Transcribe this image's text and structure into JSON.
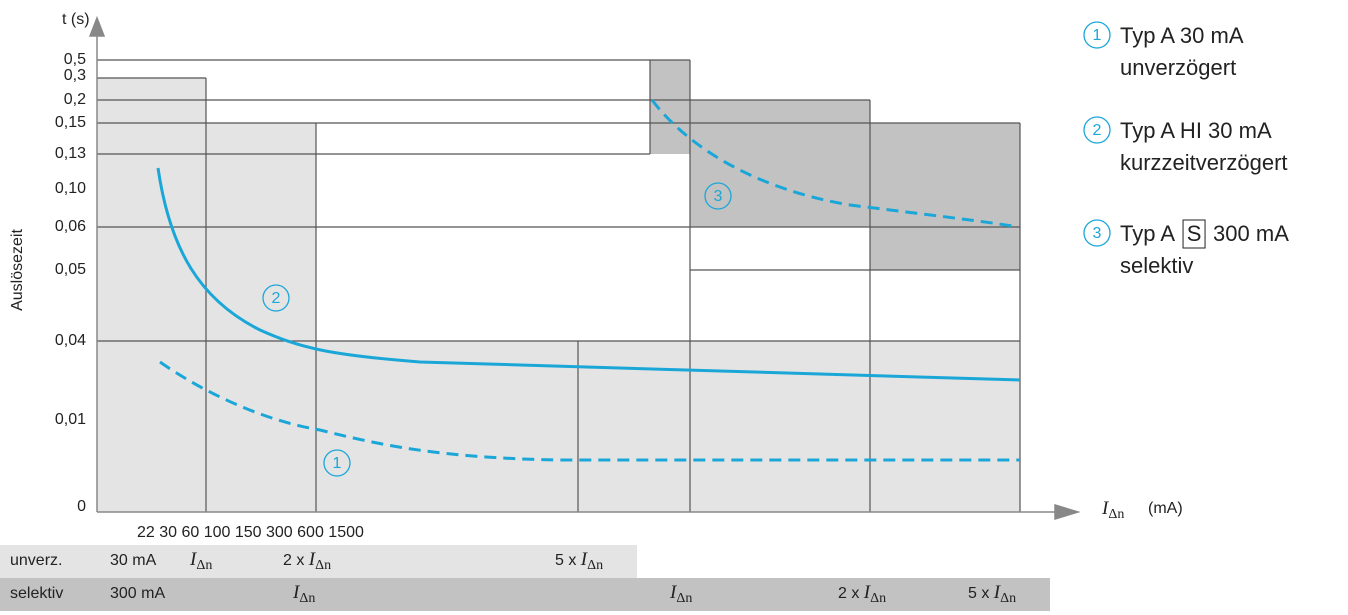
{
  "y_axis": {
    "unit": "t (s)",
    "label": "Auslösezeit",
    "ticks": [
      "0,5",
      "0,3",
      "0,2",
      "0,15",
      "0,13",
      "0,10",
      "0,06",
      "0,05",
      "0,04",
      "0,01",
      "0"
    ]
  },
  "x_axis": {
    "symbol": "I",
    "subscript": "Δn",
    "unit": "(mA)",
    "ticks": "22 30 60 100 150 300 600 1500"
  },
  "rows": [
    {
      "name": "unverz.",
      "rating": "30 mA",
      "marks": [
        {
          "symbol": "I",
          "subscript": "Δn"
        },
        {
          "prefix": "2 x",
          "symbol": "I",
          "subscript": "Δn"
        },
        {
          "prefix": "5 x",
          "symbol": "I",
          "subscript": "Δn"
        }
      ]
    },
    {
      "name": "selektiv",
      "rating": "300 mA",
      "marks": [
        {
          "symbol": "I",
          "subscript": "Δn"
        },
        {
          "symbol": "I",
          "subscript": "Δn"
        },
        {
          "prefix": "2 x",
          "symbol": "I",
          "subscript": "Δn"
        },
        {
          "prefix": "5 x",
          "symbol": "I",
          "subscript": "Δn"
        }
      ]
    }
  ],
  "curve_labels": [
    "1",
    "2",
    "3"
  ],
  "legend": [
    {
      "number": "1",
      "line1": "Typ A 30 mA",
      "line2": "unverzögert"
    },
    {
      "number": "2",
      "line1": "Typ A HI 30 mA",
      "line2": "kurzzeitverzögert"
    },
    {
      "number": "3",
      "line1": "Typ A",
      "boxed": "S",
      "line1_end": "300 mA",
      "line2": "selektiv"
    }
  ]
}
